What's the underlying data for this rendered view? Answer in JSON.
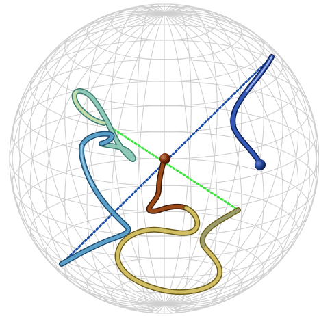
{
  "scene": {
    "description_visible_text": "",
    "colors": {
      "background": "#ffffff",
      "sphere_wire": "#cfcfcf",
      "tube_teal": "#6fb7a8",
      "tube_pale": "#a9c9a0",
      "tube_steel_blue": "#3a7fa8",
      "tube_navy": "#1f3f8f",
      "tube_brown": "#7a3a12",
      "tube_olive": "#c8b455",
      "tube_gray_olive": "#8d9060",
      "dotted_blue": "#1d4fa6",
      "dotted_green": "#3ee43e",
      "center_sphere": "#7a2a10"
    },
    "icons": {
      "wireframe_sphere": "sphere-wireframe-icon",
      "center_atom": "atom-sphere-icon"
    }
  }
}
